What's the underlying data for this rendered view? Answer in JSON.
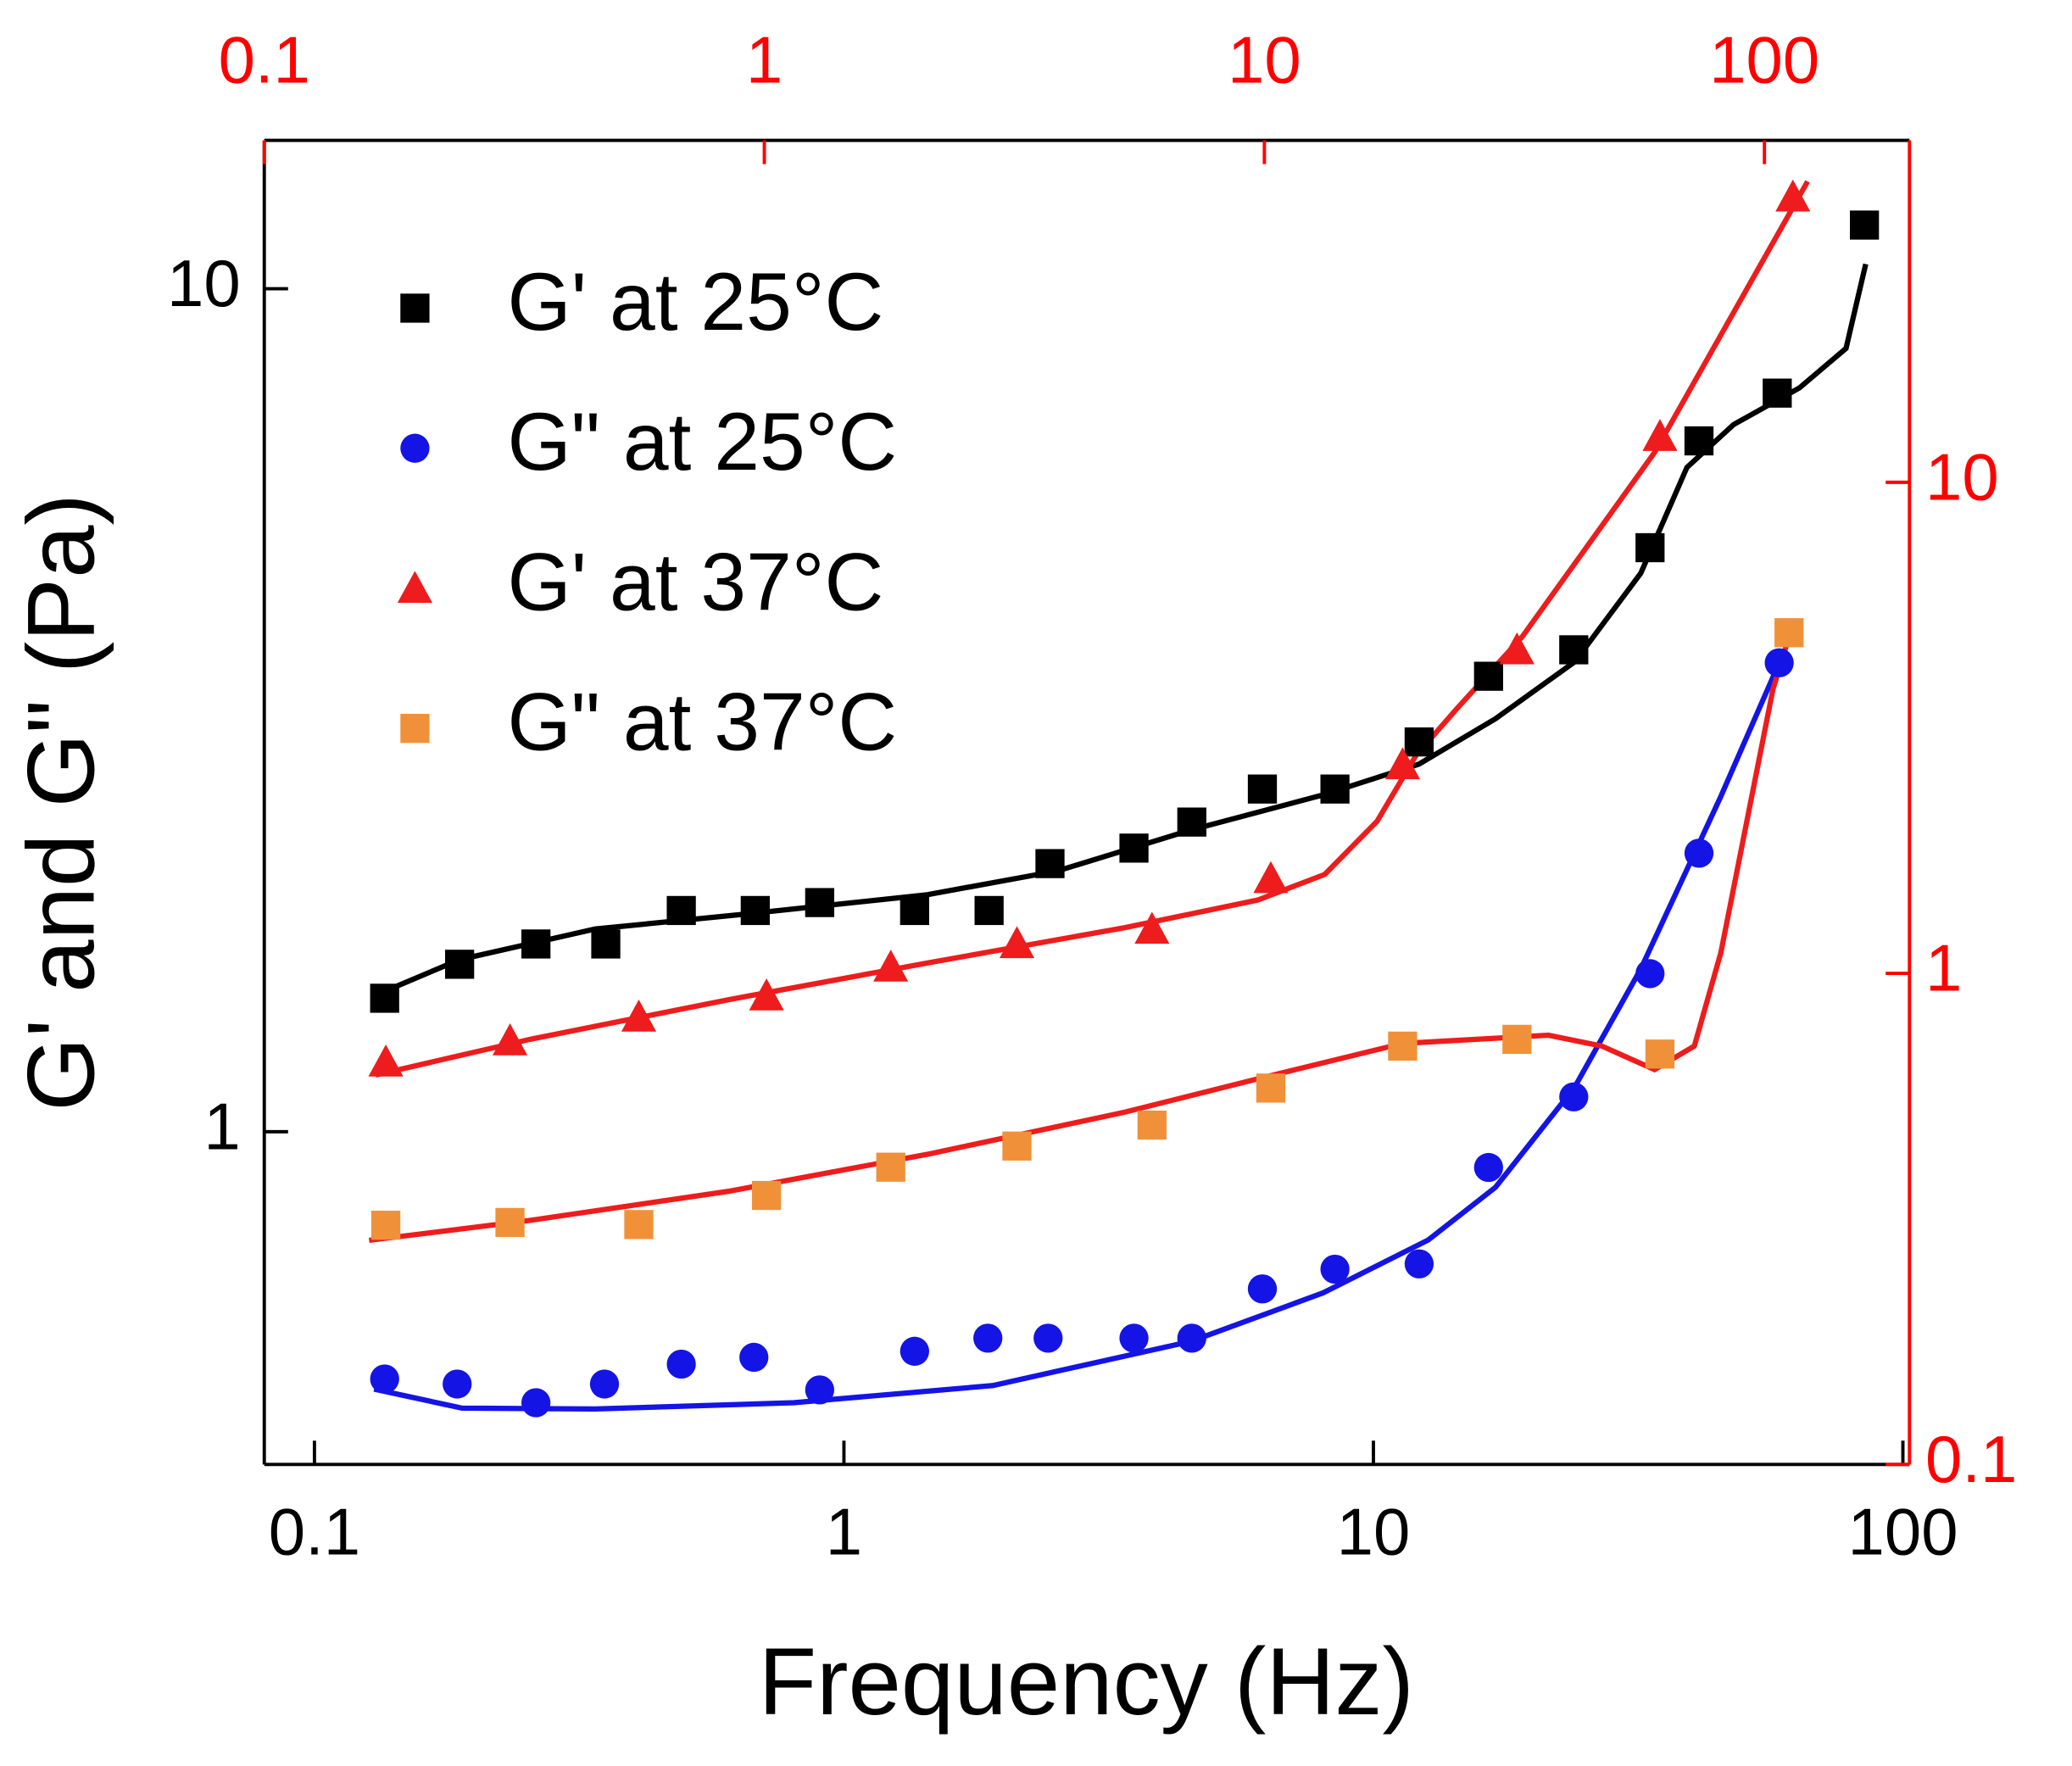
{
  "chart_data": {
    "type": "scatter",
    "xlabel": "Frequency (Hz)",
    "ylabel": "G' and G\" (Pa)",
    "xscale": "log",
    "yscale": "log",
    "xlim": [
      0.0804,
      102.9
    ],
    "xticks": [
      0.1,
      1,
      10,
      100
    ],
    "ylim": [
      0.403,
      15
    ],
    "yticks": [
      1,
      10
    ],
    "x2lim": [
      0.1,
      195
    ],
    "x2ticks": [
      0.1,
      1,
      10,
      100
    ],
    "y2lim": [
      0.1,
      49.7
    ],
    "y2ticks": [
      0.1,
      1,
      10
    ],
    "axis2_color": "#ff0000",
    "legend": "upper left",
    "series": [
      {
        "name": "G' at 25°C",
        "color": "#000000",
        "marker": "square",
        "x": [
          0.1357,
          0.188,
          0.262,
          0.355,
          0.493,
          0.68,
          0.9,
          1.36,
          1.88,
          2.45,
          3.53,
          4.54,
          6.17,
          8.46,
          12.2,
          16.5,
          23.9,
          33.3,
          41.2,
          57.9,
          84.6
        ],
        "values": [
          1.44,
          1.58,
          1.67,
          1.67,
          1.83,
          1.83,
          1.87,
          1.83,
          1.83,
          2.08,
          2.17,
          2.33,
          2.55,
          2.55,
          2.9,
          3.47,
          3.73,
          4.93,
          6.6,
          7.52,
          11.9
        ],
        "fit_color": "#000000",
        "fit": {
          "x": [
            0.1296,
            0.188,
            0.339,
            0.638,
            1.43,
            2.54,
            4.52,
            8.04,
            12.2,
            17.0,
            24.0,
            32.0,
            39.1,
            47.9,
            63.8,
            78.1,
            85.1
          ],
          "y": [
            1.45,
            1.6,
            1.74,
            1.81,
            1.91,
            2.04,
            2.28,
            2.51,
            2.73,
            3.09,
            3.61,
            4.6,
            6.14,
            6.9,
            7.63,
            8.5,
            10.7
          ]
        }
      },
      {
        "name": "G\" at 25°C",
        "color": "#1414e6",
        "marker": "circle",
        "x": [
          0.1357,
          0.186,
          0.262,
          0.353,
          0.493,
          0.676,
          0.9,
          1.36,
          1.87,
          2.43,
          3.53,
          4.54,
          6.17,
          8.46,
          12.2,
          16.5,
          23.9,
          33.3,
          41.2,
          58.4
        ],
        "values": [
          0.509,
          0.502,
          0.477,
          0.502,
          0.53,
          0.54,
          0.494,
          0.549,
          0.569,
          0.569,
          0.569,
          0.569,
          0.651,
          0.687,
          0.697,
          0.907,
          1.1,
          1.54,
          2.14,
          3.6
        ],
        "fit_color": "#1414e6",
        "fit": {
          "x": [
            0.1296,
            0.19,
            0.339,
            0.804,
            1.91,
            4.52,
            8.04,
            12.7,
            17.0,
            24.0,
            32.0,
            45.2,
            58.4
          ],
          "y": [
            0.495,
            0.47,
            0.469,
            0.477,
            0.5,
            0.564,
            0.644,
            0.744,
            0.859,
            1.13,
            1.56,
            2.49,
            3.6
          ]
        }
      },
      {
        "name": "G' at 37°C",
        "color": "#ee1c1c",
        "marker": "triangle",
        "axis": "y2",
        "x": [
          0.175,
          0.31,
          0.561,
          1.01,
          1.79,
          3.2,
          5.96,
          10.3,
          18.9,
          32.0,
          61.8,
          114
        ],
        "values": [
          0.66,
          0.729,
          0.815,
          0.9,
          1.03,
          1.15,
          1.23,
          1.56,
          2.66,
          4.56,
          12.4,
          38.1
        ],
        "fit_color": "#ee1c1c",
        "fit": {
          "x": [
            0.167,
            0.34,
            0.848,
            2.12,
            5.27,
            9.7,
            13.2,
            16.8,
            20.1,
            24.2,
            32.8,
            60.3,
            122
          ],
          "y": [
            0.621,
            0.734,
            0.884,
            1.05,
            1.24,
            1.41,
            1.59,
            2.04,
            2.78,
            3.45,
            4.85,
            11.5,
            41.0
          ]
        }
      },
      {
        "name": "G\" at 37°C",
        "color": "#f0913a",
        "marker": "square",
        "axis": "y2",
        "x": [
          0.175,
          0.31,
          0.561,
          1.01,
          1.79,
          3.2,
          5.96,
          10.3,
          18.9,
          32.0,
          61.8,
          112
        ],
        "values": [
          0.307,
          0.311,
          0.308,
          0.353,
          0.403,
          0.445,
          0.491,
          0.584,
          0.711,
          0.734,
          0.685,
          4.94
        ],
        "fit_color": "#ee1c1c",
        "fit": {
          "x": [
            0.162,
            0.34,
            0.848,
            2.12,
            5.27,
            9.7,
            18.9,
            37.0,
            47.3,
            60.3,
            72.4,
            81.8,
            104,
            112
          ],
          "y": [
            0.286,
            0.314,
            0.36,
            0.428,
            0.522,
            0.61,
            0.72,
            0.748,
            0.711,
            0.637,
            0.711,
            1.1,
            3.79,
            4.85
          ]
        }
      }
    ]
  }
}
